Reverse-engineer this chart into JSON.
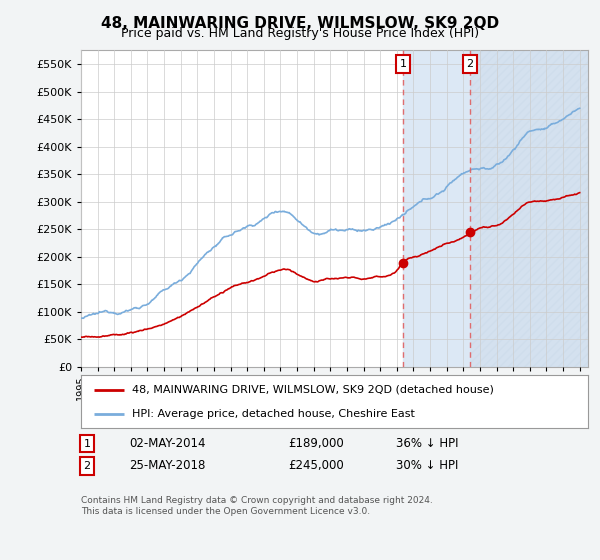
{
  "title": "48, MAINWARING DRIVE, WILMSLOW, SK9 2QD",
  "subtitle": "Price paid vs. HM Land Registry's House Price Index (HPI)",
  "legend_property": "48, MAINWARING DRIVE, WILMSLOW, SK9 2QD (detached house)",
  "legend_hpi": "HPI: Average price, detached house, Cheshire East",
  "footnote": "Contains HM Land Registry data © Crown copyright and database right 2024.\nThis data is licensed under the Open Government Licence v3.0.",
  "annotation1_date": "02-MAY-2014",
  "annotation1_price": "£189,000",
  "annotation1_hpi": "36% ↓ HPI",
  "annotation2_date": "25-MAY-2018",
  "annotation2_price": "£245,000",
  "annotation2_hpi": "30% ↓ HPI",
  "ylim": [
    0,
    575000
  ],
  "yticks": [
    0,
    50000,
    100000,
    150000,
    200000,
    250000,
    300000,
    350000,
    400000,
    450000,
    500000,
    550000
  ],
  "xlim_left": 1995,
  "xlim_right": 2025.5,
  "sale1_x": 2014.37,
  "sale1_y": 189000,
  "sale2_x": 2018.4,
  "sale2_y": 245000,
  "vline1_x": 2014.37,
  "vline2_x": 2018.4,
  "hpi_color": "#7aaddc",
  "property_color": "#cc0000",
  "grid_color": "#cccccc",
  "shade_color": "#dce8f5",
  "bg_color": "#f2f4f5"
}
